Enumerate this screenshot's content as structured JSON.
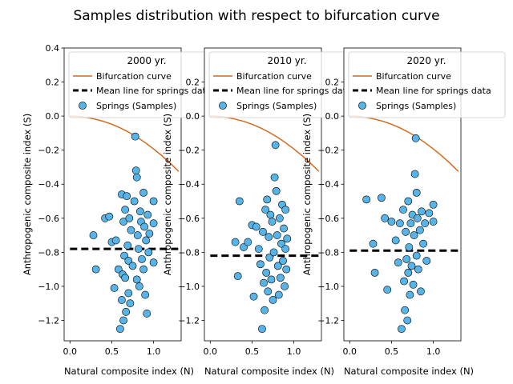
{
  "chart_data": {
    "type": "scatter",
    "suptitle": "Samples distribution with respect to bifurcation curve",
    "xlabel": "Natural composite index (N)",
    "ylabel": "Anthropogenic composite index (S)",
    "colors": {
      "curve": "#d2691e",
      "points": "#56b4e9",
      "mean": "#000000"
    },
    "legend_labels": [
      "Bifurcation curve",
      "Mean line for springs data",
      "Springs (Samples)"
    ],
    "legend_placement": "upper-right",
    "curve": {
      "x": [
        0.0,
        0.1,
        0.2,
        0.3,
        0.4,
        0.5,
        0.6,
        0.7,
        0.8,
        0.9,
        1.0,
        1.1,
        1.2,
        1.3
      ],
      "y": [
        0.0,
        -0.002,
        -0.008,
        -0.018,
        -0.031,
        -0.048,
        -0.069,
        -0.094,
        -0.123,
        -0.156,
        -0.193,
        -0.233,
        -0.277,
        -0.325
      ]
    },
    "panels": [
      {
        "legend_title": "2000 yr.",
        "xlim": [
          -0.07,
          1.33
        ],
        "ylim": [
          -1.32,
          0.4
        ],
        "xticks": [
          0.0,
          0.5,
          1.0
        ],
        "xtick_labels": [
          "0.0",
          "0.5",
          "1.0"
        ],
        "yticks": [
          0.4,
          0.2,
          0.0,
          -0.2,
          -0.4,
          -0.6,
          -0.8,
          -1.0,
          -1.2
        ],
        "ytick_labels": [
          "0.4",
          "0.2",
          "0.0",
          "−0.2",
          "−0.4",
          "−0.6",
          "−0.8",
          "−1.0",
          "−1.2"
        ],
        "mean": -0.78,
        "points": {
          "x": [
            0.28,
            0.31,
            0.42,
            0.47,
            0.5,
            0.53,
            0.55,
            0.58,
            0.6,
            0.62,
            0.62,
            0.63,
            0.64,
            0.64,
            0.65,
            0.66,
            0.66,
            0.67,
            0.68,
            0.69,
            0.7,
            0.7,
            0.71,
            0.72,
            0.73,
            0.75,
            0.77,
            0.78,
            0.79,
            0.8,
            0.8,
            0.81,
            0.82,
            0.83,
            0.84,
            0.85,
            0.86,
            0.88,
            0.88,
            0.89,
            0.9,
            0.91,
            0.92,
            0.93,
            0.94,
            0.95,
            1.0,
            1.0,
            1.0
          ],
          "y": [
            -0.7,
            -0.9,
            -0.6,
            -0.59,
            -0.74,
            -1.01,
            -0.73,
            -0.9,
            -1.25,
            -0.46,
            -1.08,
            -0.93,
            -1.2,
            -0.62,
            -0.82,
            -0.55,
            -0.95,
            -1.15,
            -0.47,
            -0.76,
            -0.85,
            -1.04,
            -0.6,
            -1.1,
            -0.67,
            -0.88,
            -0.5,
            -0.12,
            -0.32,
            -0.36,
            -0.96,
            -0.7,
            -0.78,
            -1.0,
            -0.56,
            -0.62,
            -0.84,
            -0.45,
            -0.9,
            -0.65,
            -1.05,
            -0.73,
            -1.16,
            -0.58,
            -0.8,
            -0.69,
            -0.5,
            -0.63,
            -0.86
          ]
        }
      },
      {
        "legend_title": "2010 yr.",
        "xlim": [
          -0.07,
          1.33
        ],
        "ylim": [
          -1.32,
          0.4
        ],
        "xticks": [
          0.0,
          0.5,
          1.0
        ],
        "xtick_labels": [
          "0.0",
          "0.5",
          "1.0"
        ],
        "yticks": [
          0.2,
          0.0,
          -0.2,
          -0.4,
          -0.6,
          -0.8,
          -1.0,
          -1.2
        ],
        "ytick_labels": [
          "0.2",
          "0.0",
          "−0.2",
          "−0.4",
          "−0.6",
          "−0.8",
          "−1.0",
          "−1.2"
        ],
        "mean": -0.82,
        "points": {
          "x": [
            0.3,
            0.33,
            0.35,
            0.4,
            0.45,
            0.5,
            0.52,
            0.55,
            0.58,
            0.6,
            0.62,
            0.63,
            0.64,
            0.65,
            0.66,
            0.67,
            0.68,
            0.69,
            0.7,
            0.71,
            0.72,
            0.73,
            0.74,
            0.75,
            0.76,
            0.77,
            0.78,
            0.79,
            0.8,
            0.81,
            0.82,
            0.83,
            0.84,
            0.85,
            0.86,
            0.87,
            0.88,
            0.89,
            0.9,
            0.9,
            0.91,
            0.92
          ],
          "y": [
            -0.74,
            -0.94,
            -0.5,
            -0.77,
            -0.74,
            -0.64,
            -1.06,
            -0.65,
            -0.78,
            -0.87,
            -1.25,
            -0.68,
            -0.98,
            -1.14,
            -0.55,
            -0.92,
            -0.49,
            -1.03,
            -0.71,
            -0.83,
            -0.58,
            -0.96,
            -0.62,
            -1.08,
            -0.8,
            -0.36,
            -0.17,
            -0.44,
            -0.7,
            -0.88,
            -1.05,
            -0.6,
            -0.95,
            -0.75,
            -0.52,
            -0.85,
            -0.66,
            -1.0,
            -0.55,
            -0.78,
            -0.9,
            -0.72
          ]
        }
      },
      {
        "legend_title": "2020 yr.",
        "xlim": [
          -0.07,
          1.33
        ],
        "ylim": [
          -1.32,
          0.4
        ],
        "xticks": [
          0.0,
          0.5,
          1.0
        ],
        "xtick_labels": [
          "0.0",
          "0.5",
          "1.0"
        ],
        "yticks": [
          0.2,
          0.0,
          -0.2,
          -0.4,
          -0.6,
          -0.8,
          -1.0,
          -1.2
        ],
        "ytick_labels": [
          "0.2",
          "0.0",
          "−0.2",
          "−0.4",
          "−0.6",
          "−0.8",
          "−1.0",
          "−1.2"
        ],
        "mean": -0.79,
        "points": {
          "x": [
            0.2,
            0.28,
            0.3,
            0.38,
            0.42,
            0.45,
            0.5,
            0.55,
            0.58,
            0.6,
            0.62,
            0.64,
            0.65,
            0.66,
            0.67,
            0.68,
            0.69,
            0.7,
            0.7,
            0.71,
            0.72,
            0.73,
            0.74,
            0.75,
            0.76,
            0.77,
            0.78,
            0.79,
            0.8,
            0.8,
            0.81,
            0.82,
            0.84,
            0.85,
            0.86,
            0.88,
            0.9,
            0.92,
            0.95,
            1.0,
            1.0
          ],
          "y": [
            -0.49,
            -0.75,
            -0.92,
            -0.48,
            -0.6,
            -1.02,
            -0.62,
            -0.73,
            -0.86,
            -0.63,
            -1.25,
            -0.55,
            -0.97,
            -1.14,
            -0.68,
            -0.84,
            -1.2,
            -0.5,
            -0.92,
            -0.77,
            -1.05,
            -0.63,
            -0.88,
            -0.58,
            -0.99,
            -0.7,
            -0.34,
            -0.13,
            -0.45,
            -0.82,
            -0.6,
            -0.9,
            -0.67,
            -1.03,
            -0.56,
            -0.75,
            -0.63,
            -0.85,
            -0.57,
            -0.52,
            -0.62
          ]
        }
      }
    ]
  }
}
